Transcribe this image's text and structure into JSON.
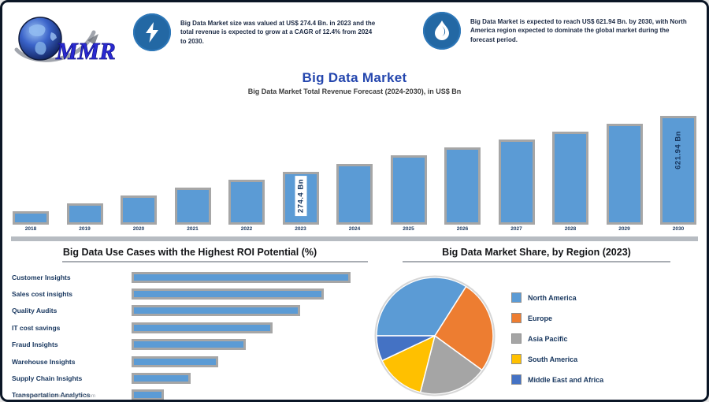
{
  "brand": {
    "logo_text": "MMR"
  },
  "header": {
    "stat1": {
      "icon": "lightning-icon",
      "text": "Big Data Market size was valued at US$ 274.4 Bn. in 2023 and the total revenue is expected to grow at a CAGR of 12.4% from 2024 to 2030."
    },
    "stat2": {
      "icon": "droplet-icon",
      "text": "Big Data Market is expected to reach US$ 621.94 Bn. by 2030, with North America region expected to dominate the global market during the forecast period."
    }
  },
  "page": {
    "title": "Big Data Market",
    "subtitle": "Big Data Market Total Revenue Forecast (2024-2030), in US$ Bn"
  },
  "source_note": "www.maximizemarketresearch.com",
  "colors": {
    "accent_blue": "#2547ae",
    "bar_fill": "#5b9bd5",
    "bar_border": "#a6a6a6",
    "navy_text": "#17365e",
    "badge_blue": "#2368a4",
    "divider_gray": "#b7bcc2"
  },
  "chart_data": [
    {
      "type": "bar",
      "title": "Big Data Market Total Revenue Forecast",
      "unit": "US$ Bn",
      "categories": [
        "2018",
        "2019",
        "2020",
        "2021",
        "2022",
        "2023",
        "2024",
        "2025",
        "2026",
        "2027",
        "2028",
        "2029",
        "2030"
      ],
      "values": [
        152.9,
        171.9,
        193.2,
        217.2,
        244.1,
        274.4,
        308.4,
        346.7,
        389.6,
        438.0,
        492.3,
        553.3,
        621.94
      ],
      "values_estimated": true,
      "value_labels": [
        {
          "index": 5,
          "text": "274.4 Bn",
          "boxed": true
        },
        {
          "index": 12,
          "text": "621.94 Bn",
          "boxed": false
        }
      ],
      "grid": false,
      "legend": false
    },
    {
      "type": "bar-horizontal",
      "title": "Big Data Use Cases with the Highest ROI Potential (%)",
      "unit": "%",
      "categories": [
        "Customer Insights",
        "Sales cost insights",
        "Quality Audits",
        "IT cost savings",
        "Fraud Insights",
        "Warehouse Insights",
        "Supply Chain Insights",
        "Transportation Analytics"
      ],
      "values": [
        55,
        48,
        42,
        35,
        28,
        21,
        14,
        7
      ],
      "values_estimated": true,
      "grid": false,
      "legend": false
    },
    {
      "type": "pie",
      "title": "Big Data Market Share, by Region (2023)",
      "unit": "%",
      "labels": [
        "North America",
        "Europe",
        "Asia Pacific",
        "South America",
        "Middle East and Africa"
      ],
      "values": [
        34,
        26,
        19,
        14,
        7
      ],
      "values_estimated": true,
      "colors": [
        "#5b9bd5",
        "#ed7d31",
        "#a5a5a5",
        "#ffc000",
        "#4472c4"
      ],
      "legend_position": "right",
      "start_angle_deg_from_top": 270
    }
  ]
}
